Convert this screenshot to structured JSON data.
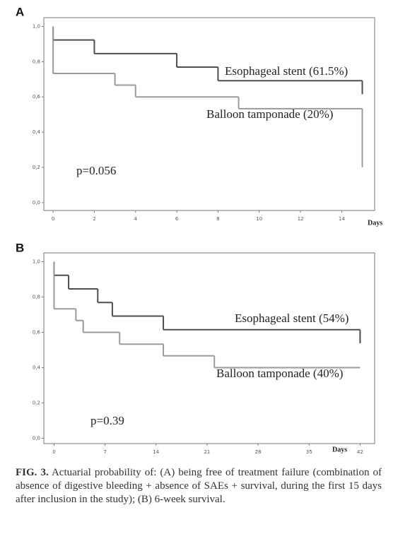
{
  "chart_data": [
    {
      "type": "step",
      "panel": "A",
      "x_label": "Days",
      "annotation": "p=0.056",
      "series": [
        {
          "name": "Esophageal stent (61.5%)",
          "color": "#4d4d4d",
          "x": [
            0,
            0,
            2,
            6,
            8,
            15
          ],
          "values": [
            1.0,
            0.923,
            0.846,
            0.769,
            0.692,
            0.615
          ]
        },
        {
          "name": "Balloon tamponade (20%)",
          "color": "#9a9a9a",
          "x": [
            0,
            0,
            3,
            4,
            9,
            15
          ],
          "values": [
            1.0,
            0.733,
            0.667,
            0.6,
            0.533,
            0.2
          ]
        }
      ],
      "xlim": [
        -0.45,
        15.6
      ],
      "ylim": [
        -0.045,
        1.05
      ],
      "xticks": [
        0,
        2,
        4,
        6,
        8,
        10,
        12,
        14
      ],
      "yticks": [
        {
          "value": 0,
          "label": "0,0"
        },
        {
          "value": 0.2,
          "label": "0,2"
        },
        {
          "value": 0.4,
          "label": "0,4"
        },
        {
          "value": 0.6,
          "label": "0,6"
        },
        {
          "value": 0.8,
          "label": "0,8"
        },
        {
          "value": 1,
          "label": "1,0"
        }
      ]
    },
    {
      "type": "step",
      "panel": "B",
      "x_label": "Days",
      "annotation": "p=0.39",
      "series": [
        {
          "name": "Esophageal stent (54%)",
          "color": "#4d4d4d",
          "x": [
            0,
            0,
            2,
            6,
            8,
            15,
            42
          ],
          "values": [
            1.0,
            0.923,
            0.846,
            0.769,
            0.692,
            0.615,
            0.538
          ]
        },
        {
          "name": "Balloon tamponade (40%)",
          "color": "#9a9a9a",
          "x": [
            0,
            0,
            3,
            4,
            9,
            15,
            22,
            42
          ],
          "values": [
            1.0,
            0.733,
            0.667,
            0.6,
            0.533,
            0.467,
            0.4,
            0.4
          ]
        }
      ],
      "xlim": [
        -1.4,
        44
      ],
      "ylim": [
        -0.03,
        1.05
      ],
      "xticks": [
        0,
        7,
        14,
        21,
        28,
        35,
        42
      ],
      "yticks": [
        {
          "value": 0,
          "label": "0,0"
        },
        {
          "value": 0.2,
          "label": "0,2"
        },
        {
          "value": 0.4,
          "label": "0,4"
        },
        {
          "value": 0.6,
          "label": "0,6"
        },
        {
          "value": 0.8,
          "label": "0,8"
        },
        {
          "value": 1,
          "label": "1,0"
        }
      ]
    }
  ],
  "caption": {
    "label": "FIG. 3.",
    "text": "Actuarial probability of: (A) being free of treatment failure (combination of absence of digestive bleeding + absence of SAEs + survival, during the first 15 days after inclusion in the study); (B) 6-week survival."
  }
}
